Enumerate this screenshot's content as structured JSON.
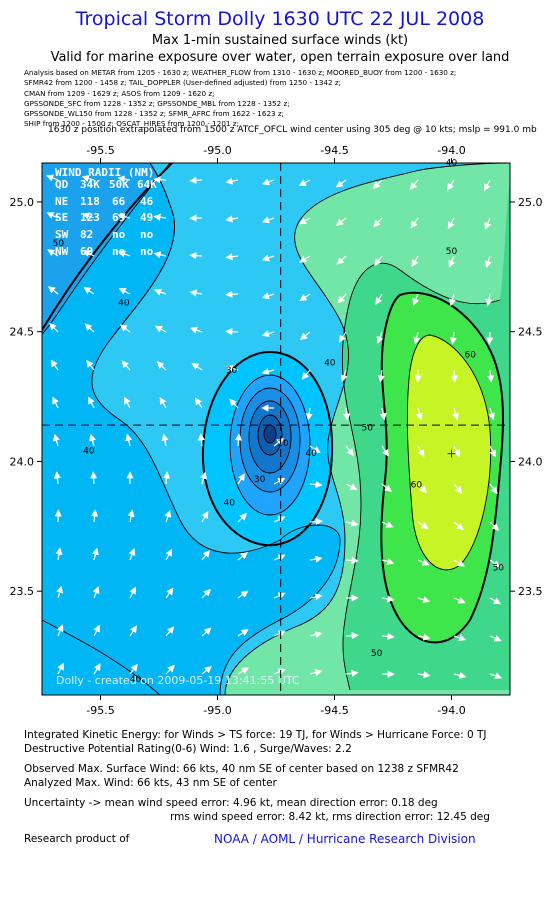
{
  "header": {
    "title": "Tropical Storm Dolly 1630 UTC 22 JUL 2008",
    "subtitle": "Max 1-min sustained surface winds (kt)",
    "validity": "Valid for marine exposure over water, open terrain exposure over land",
    "analysis_lines": [
      "Analysis based on  METAR from 1205 - 1630 z;  WEATHER_FLOW from 1310 - 1630 z;  MOORED_BUOY from 1200 - 1630 z;",
      "SFMR42 from 1200 - 1458 z;  TAIL_DOPPLER (User-defined adjusted) from 1250 - 1342 z;",
      "CMAN from 1209 - 1629 z;  ASOS from 1209 - 1620 z;",
      "GPSSONDE_SFC from 1228 - 1352 z;  GPSSONDE_MBL from 1228 - 1352 z;",
      "GPSSONDE_WL150 from 1228 - 1352 z;  SFMR_AFRC from 1622 - 1623 z;",
      "SHIP from 1200 - 1500 z;  QSCAT_HIRES from 1200 - 1201 z;"
    ],
    "position_note": "1630 z position extrapolated from 1500 z ATCF_OFCL wind center using 305 deg @ 10 kts; mslp = 991.0 mb"
  },
  "map": {
    "lon_ticks": [
      "-95.5",
      "-95.0",
      "-94.5",
      "-94.0"
    ],
    "lon_tick_values": [
      -95.5,
      -95.0,
      -94.5,
      -94.0
    ],
    "lat_ticks": [
      "25.0",
      "24.5",
      "24.0",
      "23.5"
    ],
    "lat_tick_values": [
      25.0,
      24.5,
      24.0,
      23.5
    ],
    "lon_range": [
      -95.75,
      -93.75
    ],
    "lat_range": [
      23.1,
      25.15
    ],
    "storm_center": {
      "lon": -94.73,
      "lat": 24.14
    },
    "max_wind_center": {
      "lon": -94.0,
      "lat": 24.03
    },
    "contour_labels": [
      {
        "text": "40",
        "lon": -95.4,
        "lat": 24.6
      },
      {
        "text": "30",
        "lon": -94.94,
        "lat": 24.34
      },
      {
        "text": "40",
        "lon": -94.52,
        "lat": 24.37
      },
      {
        "text": "50",
        "lon": -94.36,
        "lat": 24.12
      },
      {
        "text": "40",
        "lon": -94.6,
        "lat": 24.02
      },
      {
        "text": "30",
        "lon": -94.82,
        "lat": 23.92
      },
      {
        "text": "40",
        "lon": -94.95,
        "lat": 23.83
      },
      {
        "text": "40",
        "lon": -95.55,
        "lat": 24.03
      },
      {
        "text": "50",
        "lon": -95.68,
        "lat": 24.83
      },
      {
        "text": "40",
        "lon": -94.0,
        "lat": 25.14
      },
      {
        "text": "50",
        "lon": -94.0,
        "lat": 24.8
      },
      {
        "text": "60",
        "lon": -94.15,
        "lat": 23.9
      },
      {
        "text": "60",
        "lon": -93.92,
        "lat": 24.4
      },
      {
        "text": "50",
        "lon": -93.8,
        "lat": 23.58
      },
      {
        "text": "50",
        "lon": -94.32,
        "lat": 23.25
      },
      {
        "text": "40",
        "lon": -95.35,
        "lat": 23.15
      },
      {
        "text": "10",
        "lon": -94.72,
        "lat": 24.06
      }
    ],
    "fill_colors": {
      "lt30": "#1aa2ec",
      "30_40": "#00bfff",
      "40_50": "#2ec8f4",
      "50_60": "#72e6a6",
      "60_70": "#3fd88a",
      "70_80": "#3ee64c",
      "gt80": "#c6f424",
      "core": [
        "#1fa4ff",
        "#188ee4",
        "#1276cc",
        "#0d5fb2"
      ]
    },
    "credit_watermark": "Dolly - created on 2009-05-19 13:41:55 UTC"
  },
  "wind_radii": {
    "title": "WIND RADII (NM)",
    "header": [
      "QD",
      "34K",
      "50K",
      "64K"
    ],
    "rows": [
      {
        "quad": "NE",
        "r34": "118",
        "r50": "66",
        "r64": "46"
      },
      {
        "quad": "SE",
        "r34": "123",
        "r50": "69",
        "r64": "49"
      },
      {
        "quad": "SW",
        "r34": "82",
        "r50": "no",
        "r64": "no"
      },
      {
        "quad": "NW",
        "r34": "69",
        "r50": "no",
        "r64": "no"
      }
    ]
  },
  "footer": {
    "ike": "Integrated Kinetic Energy:  for Winds > TS force: 19 TJ,  for Winds > Hurricane Force: 0 TJ",
    "dpr": "Destructive Potential Rating(0-6)   Wind: 1.6 , Surge/Waves: 2.2",
    "observed_max": "Observed Max. Surface Wind: 66 kts, 40 nm SE of center based on 1238 z SFMR42",
    "analyzed_max": "Analyzed Max. Wind: 66 kts, 43 nm SE of center",
    "uncertainty_1": "Uncertainty -> mean wind speed error: 4.96 kt,   mean direction error: 0.18 deg",
    "uncertainty_2": "rms wind speed error: 8.42 kt,   rms direction error: 12.45 deg",
    "research_label": "Research product of",
    "credit": "NOAA / AOML / Hurricane Research Division"
  }
}
